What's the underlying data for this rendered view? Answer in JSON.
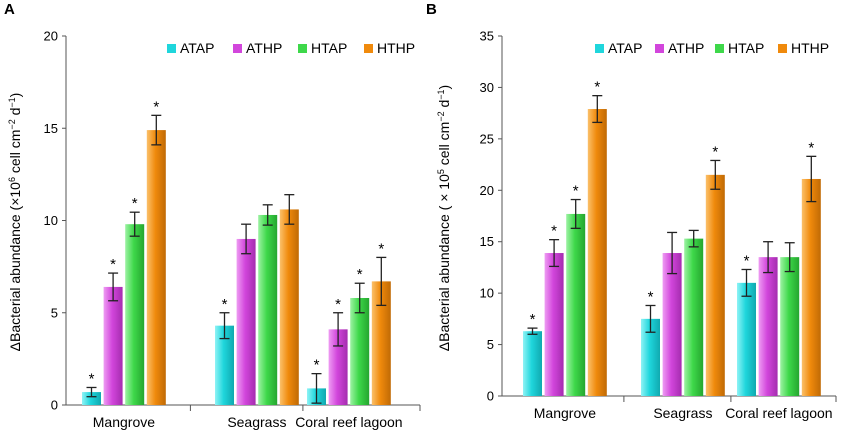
{
  "figure": {
    "panel_a_label": "A",
    "panel_b_label": "B"
  },
  "colors": {
    "ATAP": "#1fd6dc",
    "ATHP": "#d246dc",
    "HTAP": "#3ed84a",
    "HTHP": "#f08a0c"
  },
  "chart_data": [
    {
      "type": "bar",
      "panel": "A",
      "categories": [
        "Mangrove",
        "Seagrass",
        "Coral reef lagoon"
      ],
      "ylabel_parts": [
        "ΔBacterial abundance (×10",
        "6",
        " cell cm",
        "−2",
        " d",
        "−1",
        ")"
      ],
      "ylim": [
        0,
        20
      ],
      "yticks": [
        0,
        5,
        10,
        15,
        20
      ],
      "legend_position": "top-right",
      "series": [
        {
          "name": "ATAP",
          "values": [
            0.7,
            4.3,
            0.9
          ],
          "errors": [
            0.25,
            0.7,
            0.8
          ],
          "significant": [
            true,
            true,
            true
          ]
        },
        {
          "name": "ATHP",
          "values": [
            6.4,
            9.0,
            4.1
          ],
          "errors": [
            0.75,
            0.8,
            0.9
          ],
          "significant": [
            true,
            false,
            true
          ]
        },
        {
          "name": "HTAP",
          "values": [
            9.8,
            10.3,
            5.8
          ],
          "errors": [
            0.65,
            0.55,
            0.8
          ],
          "significant": [
            true,
            false,
            true
          ]
        },
        {
          "name": "HTHP",
          "values": [
            14.9,
            10.6,
            6.7
          ],
          "errors": [
            0.8,
            0.8,
            1.3
          ],
          "significant": [
            true,
            false,
            true
          ]
        }
      ]
    },
    {
      "type": "bar",
      "panel": "B",
      "categories": [
        "Mangrove",
        "Seagrass",
        "Coral reef lagoon"
      ],
      "ylabel_parts": [
        "ΔBacterial abundance ( × 10",
        "5",
        " cell cm",
        "−2",
        " d",
        "−1",
        ")"
      ],
      "ylim": [
        0,
        35
      ],
      "yticks": [
        0,
        5,
        10,
        15,
        20,
        25,
        30,
        35
      ],
      "legend_position": "top-right",
      "series": [
        {
          "name": "ATAP",
          "values": [
            6.3,
            7.5,
            11.0
          ],
          "errors": [
            0.3,
            1.3,
            1.3
          ],
          "significant": [
            true,
            true,
            true
          ]
        },
        {
          "name": "ATHP",
          "values": [
            13.9,
            13.9,
            13.5
          ],
          "errors": [
            1.3,
            2.0,
            1.5
          ],
          "significant": [
            true,
            false,
            false
          ]
        },
        {
          "name": "HTAP",
          "values": [
            17.7,
            15.3,
            13.5
          ],
          "errors": [
            1.4,
            0.8,
            1.4
          ],
          "significant": [
            true,
            false,
            false
          ]
        },
        {
          "name": "HTHP",
          "values": [
            27.9,
            21.5,
            21.1
          ],
          "errors": [
            1.3,
            1.4,
            2.2
          ],
          "significant": [
            true,
            true,
            true
          ]
        }
      ]
    }
  ],
  "significance_marker": "*"
}
